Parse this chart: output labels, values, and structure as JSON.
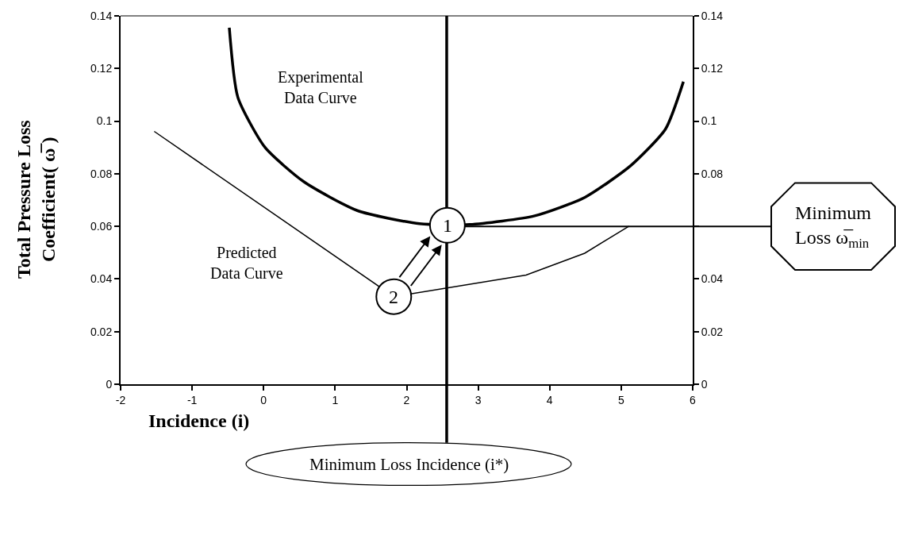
{
  "chart_data": {
    "type": "line",
    "xlabel": "Incidence (i)",
    "ylabel": "Total Pressure Loss\nCoefficient( ω̅ )",
    "series": [
      {
        "name": "Experimental\nData Curve",
        "color": "#000000",
        "x": [
          -0.48,
          -0.36,
          0.02,
          0.56,
          1.31,
          2.18,
          2.88,
          3.79,
          4.49,
          5.13,
          5.62,
          5.87
        ],
        "values": [
          0.1355,
          0.109,
          0.09,
          0.077,
          0.066,
          0.061,
          0.0607,
          0.064,
          0.071,
          0.083,
          0.097,
          0.115
        ]
      },
      {
        "name": "Predicted\nData Curve",
        "color": "#000000",
        "x": [
          -1.53,
          1.82,
          3.67,
          4.49,
          5.11
        ],
        "values": [
          0.0961,
          0.0333,
          0.0415,
          0.0498,
          0.0601
        ]
      }
    ],
    "xlim": [
      -2,
      6
    ],
    "xticks": [
      -2,
      -1,
      0,
      1,
      2,
      3,
      4,
      5,
      6
    ],
    "ylim": [
      0,
      0.14
    ],
    "yticks": [
      0,
      0.02,
      0.04,
      0.06,
      0.08,
      0.1,
      0.12,
      0.14
    ],
    "y2lim": [
      0,
      0.14
    ],
    "y2ticks": [
      0,
      0.02,
      0.04,
      {
        "value": 0.06,
        "label": null
      },
      0.08,
      0.1,
      0.12,
      0.14
    ],
    "ref_lines": [
      {
        "axis": "x",
        "value": 2.56,
        "label": "Minimum Loss Incidence (i*)",
        "color": "#000000"
      },
      {
        "axis": "y",
        "value": 0.06,
        "label": "Minimum\nLoss ω̅$_{min}$",
        "color": "#000000"
      }
    ],
    "annotations": [
      {
        "text": "1",
        "x": 2.57,
        "y": 0.0604
      },
      {
        "text": "2",
        "x": 1.82,
        "y": 0.0333
      }
    ],
    "legend": false,
    "line_style": "solid"
  }
}
